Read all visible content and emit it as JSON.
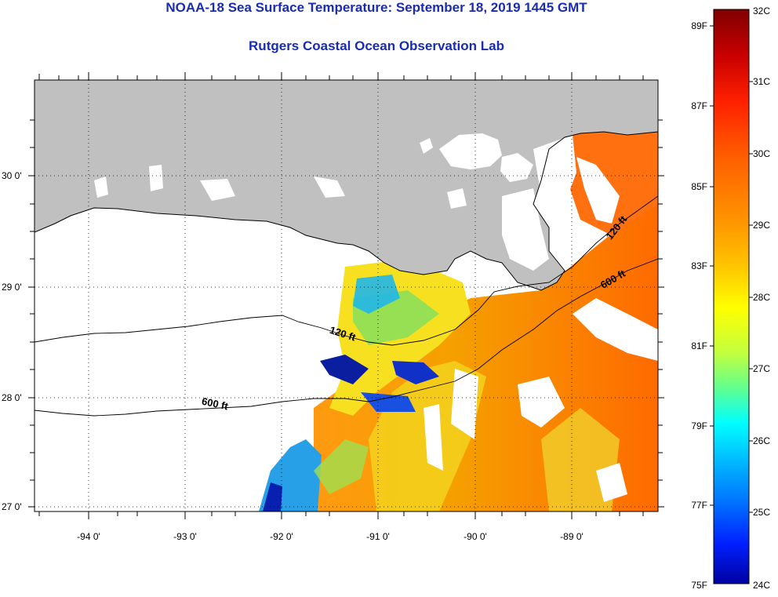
{
  "title": {
    "line1": "NOAA-18 Sea Surface Temperature:  September 18, 2019 1445 GMT",
    "line2": "Rutgers Coastal Ocean Observation Lab"
  },
  "map": {
    "lat_labels": [
      "30 0'",
      "29 0'",
      "28 0'",
      "27 0'"
    ],
    "lon_labels": [
      "-94 0'",
      "-93 0'",
      "-92 0'",
      "-91 0'",
      "-90 0'",
      "-89 0'"
    ],
    "contour_labels": [
      "120 ft",
      "600 ft",
      "120 ft",
      "600 ft"
    ],
    "land_color": "#c0c0c0",
    "cloud_color": "#ffffff"
  },
  "colorbar": {
    "fahrenheit": [
      "89F",
      "87F",
      "85F",
      "83F",
      "81F",
      "79F",
      "77F",
      "75F"
    ],
    "celsius": [
      "32C",
      "31C",
      "30C",
      "29C",
      "28C",
      "27C",
      "26C",
      "25C",
      "24C"
    ],
    "colors": [
      "#800000",
      "#c80000",
      "#ff2000",
      "#ff6000",
      "#ff9000",
      "#ffc000",
      "#ffff00",
      "#c0ff40",
      "#60ff90",
      "#00ffff",
      "#00c0ff",
      "#0070ff",
      "#0020ff",
      "#0000a0"
    ]
  }
}
